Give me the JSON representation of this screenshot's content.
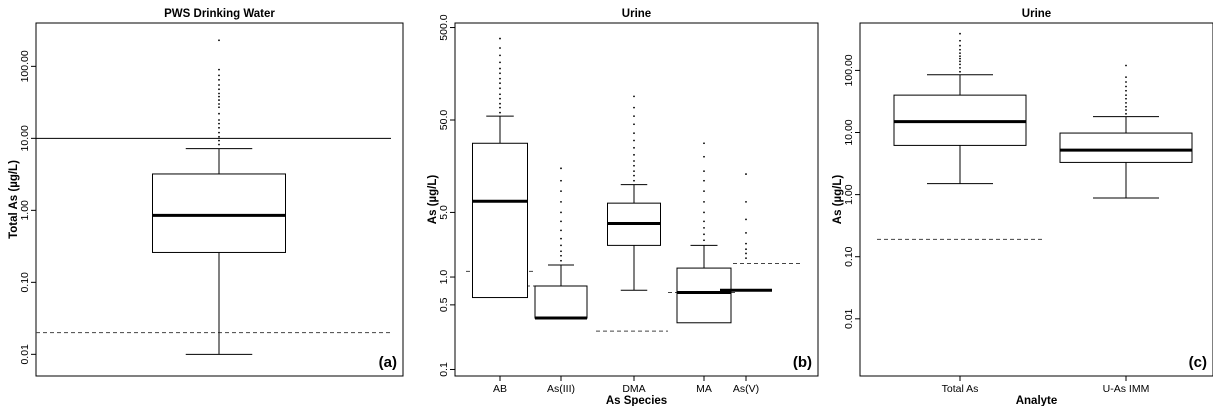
{
  "chart_data": [
    {
      "type": "box",
      "panel": "(a)",
      "title": "PWS Drinking Water",
      "ylabel": "Total As (µg/L)",
      "xlabel": "",
      "yscale": "log",
      "ylim": [
        0.005,
        400
      ],
      "yticks": [
        0.01,
        0.1,
        1,
        10,
        100
      ],
      "ytick_labels": [
        "0.01",
        "0.10",
        "1.00",
        "10.00",
        "100.00"
      ],
      "categories": [
        ""
      ],
      "boxes": [
        {
          "whisker_low": 0.01,
          "q1": 0.26,
          "median": 0.85,
          "q3": 3.2,
          "whisker_high": 7.2,
          "outliers": [
            8.2,
            9.3,
            10.5,
            12,
            14,
            16,
            18,
            22,
            27,
            30,
            34,
            38,
            42,
            48,
            55,
            65,
            75,
            90,
            230
          ]
        }
      ],
      "reference_lines": [
        {
          "y": 10,
          "style": "solid"
        },
        {
          "y": 0.02,
          "style": "dashed"
        }
      ]
    },
    {
      "type": "box",
      "panel": "(b)",
      "title": "Urine",
      "ylabel": "As (µg/L)",
      "xlabel": "As Species",
      "yscale": "log",
      "ylim": [
        0.085,
        560
      ],
      "yticks": [
        0.1,
        0.5,
        1,
        5,
        50,
        500
      ],
      "ytick_labels": [
        "0.1",
        "0.5",
        "1.0",
        "5.0",
        "50.0",
        "500.0"
      ],
      "categories": [
        "AB",
        "As(III)",
        "DMA",
        "MA",
        "As(V)"
      ],
      "boxes": [
        {
          "whisker_low": 0.6,
          "q1": 0.6,
          "median": 6.6,
          "q3": 28,
          "whisker_high": 55,
          "outliers": [
            60,
            68,
            75,
            85,
            95,
            110,
            125,
            140,
            160,
            180,
            210,
            250,
            300,
            380
          ]
        },
        {
          "whisker_low": 0.36,
          "q1": 0.36,
          "median": 0.36,
          "q3": 0.8,
          "whisker_high": 1.35,
          "outliers": [
            1.5,
            1.7,
            1.9,
            2.2,
            2.6,
            3.2,
            4,
            5,
            6.5,
            8.5,
            11,
            15
          ]
        },
        {
          "whisker_low": 0.72,
          "q1": 2.2,
          "median": 3.8,
          "q3": 6.3,
          "whisker_high": 10,
          "outliers": [
            11,
            12.5,
            14,
            16,
            18,
            21,
            25,
            30,
            36,
            45,
            55,
            68,
            90
          ]
        },
        {
          "whisker_low": 0.32,
          "q1": 0.32,
          "median": 0.68,
          "q3": 1.25,
          "whisker_high": 2.2,
          "outliers": [
            2.5,
            2.9,
            3.4,
            4,
            5,
            6.5,
            8.5,
            11,
            14,
            20,
            28
          ]
        },
        {
          "whisker_low": 0.72,
          "q1": 0.72,
          "median": 0.72,
          "q3": 0.72,
          "whisker_high": 0.72,
          "outliers": [
            1.6,
            1.8,
            2.0,
            2.3,
            3.0,
            4.2,
            6.5,
            13
          ]
        }
      ],
      "reference_lines": [
        {
          "category": "AB",
          "y": 1.15,
          "style": "dashed"
        },
        {
          "category": "As(III)",
          "y": 0.8,
          "style": "dashed"
        },
        {
          "category": "DMA",
          "y": 0.26,
          "style": "dashed"
        },
        {
          "category": "MA",
          "y": 0.68,
          "style": "dashed"
        },
        {
          "category": "As(V)",
          "y": 1.4,
          "style": "dashed"
        }
      ]
    },
    {
      "type": "box",
      "panel": "(c)",
      "title": "Urine",
      "ylabel": "As (µg/L)",
      "xlabel": "Analyte",
      "yscale": "log",
      "ylim": [
        0.0012,
        580
      ],
      "yticks": [
        0.01,
        0.1,
        1,
        10,
        100
      ],
      "ytick_labels": [
        "0.01",
        "0.10",
        "1.00",
        "10.00",
        "100.00"
      ],
      "categories": [
        "Total As",
        "U-As IMM"
      ],
      "boxes": [
        {
          "whisker_low": 1.5,
          "q1": 6.2,
          "median": 15,
          "q3": 40,
          "whisker_high": 85,
          "outliers": [
            95,
            110,
            125,
            140,
            155,
            170,
            190,
            215,
            250,
            300,
            390
          ]
        },
        {
          "whisker_low": 0.88,
          "q1": 3.3,
          "median": 5.2,
          "q3": 9.8,
          "whisker_high": 18,
          "outliers": [
            20,
            23,
            26,
            30,
            35,
            40,
            47,
            55,
            65,
            78,
            120
          ]
        }
      ],
      "reference_lines": [
        {
          "category": "Total As",
          "y": 0.19,
          "style": "dashed"
        }
      ]
    }
  ]
}
